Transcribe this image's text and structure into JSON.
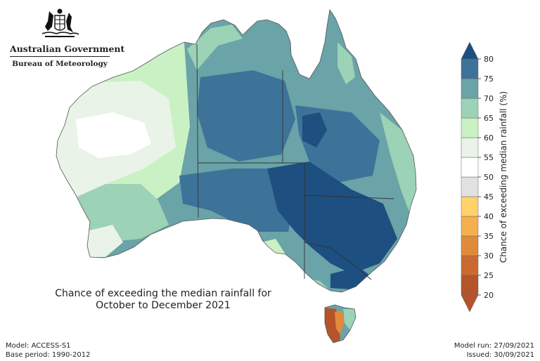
{
  "header": {
    "government": "Australian Government",
    "agency": "Bureau of Meteorology"
  },
  "map": {
    "title_line1": "Chance of exceeding the median rainfall for",
    "title_line2": "October to December 2021",
    "region": "Australia"
  },
  "legend": {
    "title": "Chance of exceeding median rainfall (%)",
    "ticks": [
      "20",
      "25",
      "30",
      "35",
      "40",
      "45",
      "50",
      "55",
      "60",
      "65",
      "70",
      "75",
      "80"
    ],
    "bins": [
      {
        "from": 20,
        "to": 25,
        "color": "#b5532a"
      },
      {
        "from": 25,
        "to": 30,
        "color": "#cb6a30"
      },
      {
        "from": 30,
        "to": 35,
        "color": "#e08b3c"
      },
      {
        "from": 35,
        "to": 40,
        "color": "#f5b04c"
      },
      {
        "from": 40,
        "to": 45,
        "color": "#ffd26a"
      },
      {
        "from": 45,
        "to": 50,
        "color": "#e1e1e1"
      },
      {
        "from": 50,
        "to": 55,
        "color": "#ffffff"
      },
      {
        "from": 55,
        "to": 60,
        "color": "#e9f3e7"
      },
      {
        "from": 60,
        "to": 65,
        "color": "#c9f1c4"
      },
      {
        "from": 65,
        "to": 70,
        "color": "#9cd2b5"
      },
      {
        "from": 70,
        "to": 75,
        "color": "#6aa3a8"
      },
      {
        "from": 75,
        "to": 80,
        "color": "#3d7399"
      },
      {
        "from": 80,
        "to": 85,
        "color": "#1d4f80"
      }
    ]
  },
  "footer": {
    "model": "Model: ACCESS-S1",
    "base_period": "Base period: 1990-2012",
    "model_run": "Model run: 27/09/2021",
    "issued": "Issued: 30/09/2021"
  }
}
